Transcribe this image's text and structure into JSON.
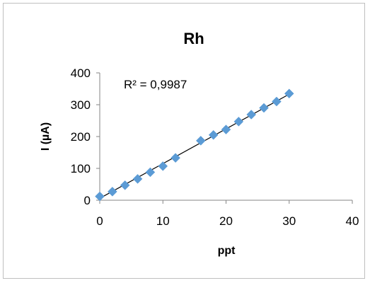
{
  "chart_data": {
    "type": "scatter",
    "title": "Rh",
    "xlabel": "ppt",
    "ylabel": "I (µA)",
    "xlim": [
      0,
      40
    ],
    "ylim": [
      0,
      400
    ],
    "xticks": [
      "0",
      "10",
      "20",
      "30",
      "40"
    ],
    "yticks": [
      "0",
      "100",
      "200",
      "300",
      "400"
    ],
    "grid": false,
    "legend": "none",
    "marker": "diamond",
    "marker_color": "#5b9bd5",
    "trendline": {
      "type": "linear",
      "color": "#000000",
      "from": [
        0,
        6
      ],
      "to": [
        30,
        333
      ]
    },
    "annotation": "R² = 0,9987",
    "series": [
      {
        "x": [
          0,
          2,
          4,
          6,
          8,
          10,
          12,
          16,
          18,
          20,
          22,
          24,
          26,
          28,
          30
        ],
        "y": [
          12,
          27,
          47,
          67,
          88,
          107,
          133,
          187,
          205,
          222,
          247,
          269,
          290,
          310,
          335
        ]
      }
    ]
  }
}
